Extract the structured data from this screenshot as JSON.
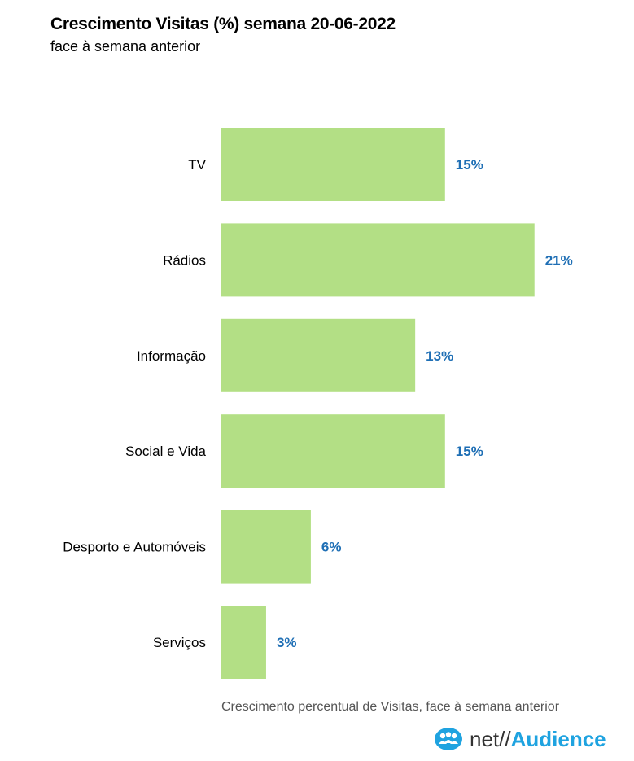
{
  "title": "Crescimento Visitas (%) semana 20-06-2022",
  "subtitle": "face à semana anterior",
  "footnote": "Crescimento percentual de Visitas, face à semana anterior",
  "logo": {
    "prefix": "net//",
    "name": "Audience",
    "icon": "people-circle-icon",
    "brand_color": "#1fa3e0"
  },
  "colors": {
    "bar": "#b3df85",
    "value_label": "#1f6fb5",
    "axis": "#c8c8c8"
  },
  "chart_data": {
    "type": "bar",
    "orientation": "horizontal",
    "categories": [
      "TV",
      "Rádios",
      "Informação",
      "Social e Vida",
      "Desporto e Automóveis",
      "Serviços"
    ],
    "values": [
      15,
      21,
      13,
      15,
      6,
      3
    ],
    "value_labels": [
      "15%",
      "21%",
      "13%",
      "15%",
      "6%",
      "3%"
    ],
    "xlim": [
      0,
      25
    ],
    "grid": false
  }
}
